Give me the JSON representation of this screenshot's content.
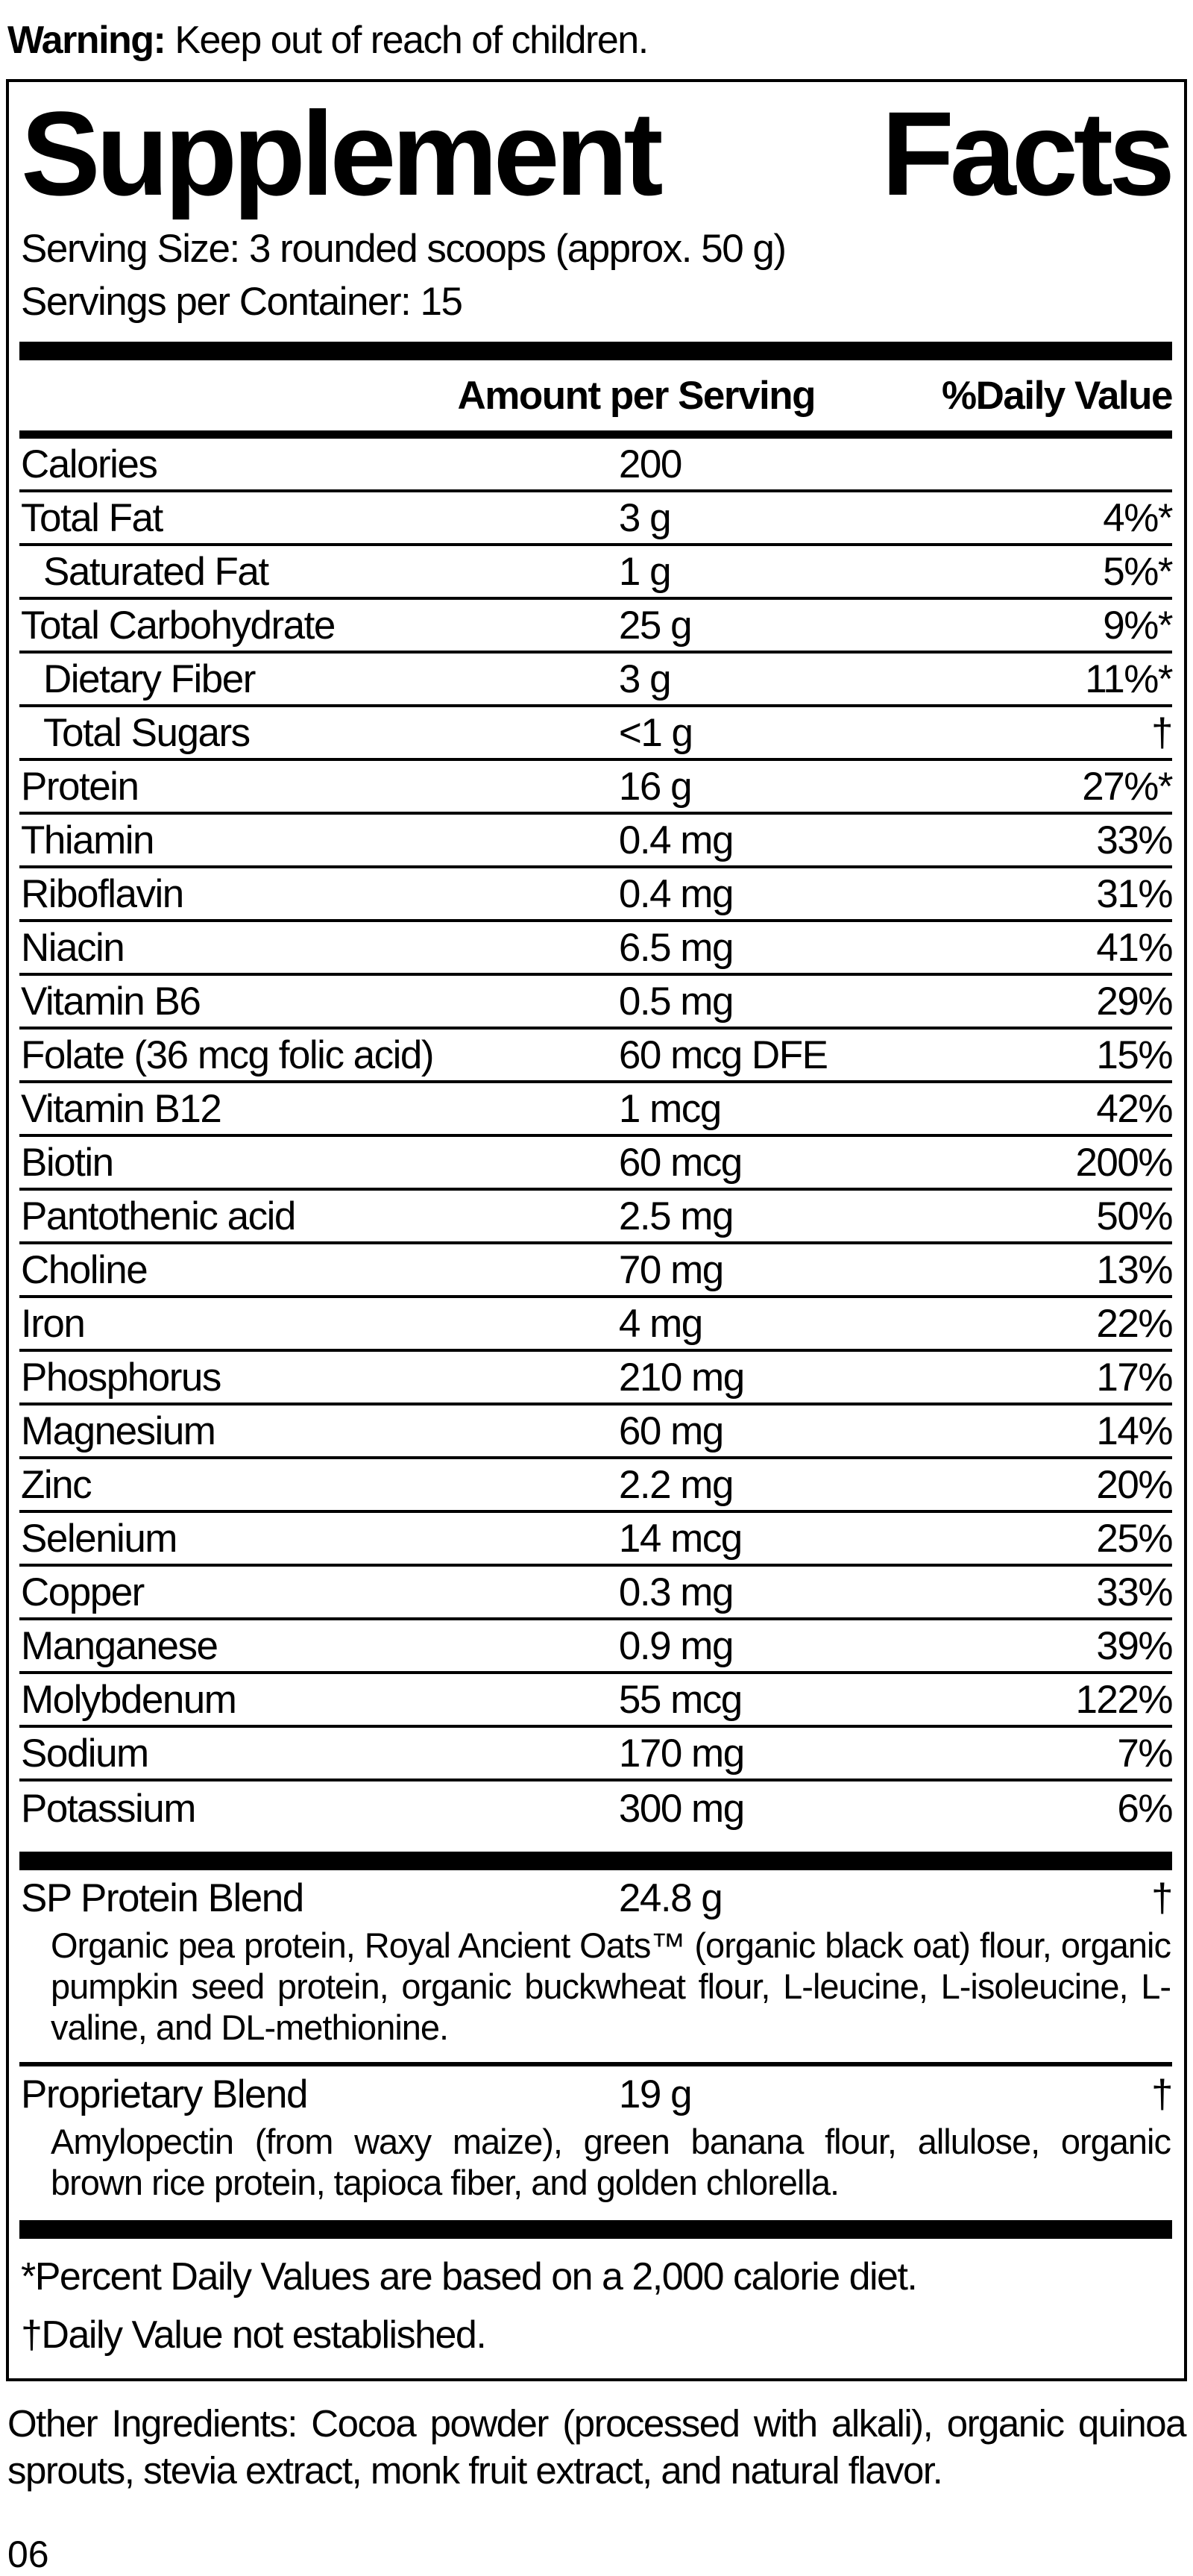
{
  "warning": {
    "label": "Warning:",
    "text": " Keep out of reach of children."
  },
  "panel": {
    "title_left": "Supplement",
    "title_right": "Facts",
    "serving_size": "Serving Size: 3 rounded scoops (approx. 50 g)",
    "servings_per_container": "Servings per Container: 15",
    "col_amount": "Amount per Serving",
    "col_dv": "%Daily Value",
    "rows": [
      {
        "name": "Calories",
        "amount": "200",
        "dv": ""
      },
      {
        "name": "Total Fat",
        "amount": "3 g",
        "dv": "4%*"
      },
      {
        "name": "Saturated Fat",
        "amount": "1 g",
        "dv": "5%*"
      },
      {
        "name": "Total Carbohydrate",
        "amount": "25 g",
        "dv": "9%*"
      },
      {
        "name": "Dietary Fiber",
        "amount": "3 g",
        "dv": "11%*"
      },
      {
        "name": "Total Sugars",
        "amount": "<1 g",
        "dv": "†"
      },
      {
        "name": "Protein",
        "amount": "16 g",
        "dv": "27%*"
      },
      {
        "name": "Thiamin",
        "amount": "0.4 mg",
        "dv": "33%"
      },
      {
        "name": "Riboflavin",
        "amount": "0.4 mg",
        "dv": "31%"
      },
      {
        "name": "Niacin",
        "amount": "6.5 mg",
        "dv": "41%"
      },
      {
        "name": "Vitamin B6",
        "amount": "0.5 mg",
        "dv": "29%"
      },
      {
        "name": "Folate (36 mcg folic acid)",
        "amount": "60 mcg DFE",
        "dv": "15%"
      },
      {
        "name": "Vitamin B12",
        "amount": "1 mcg",
        "dv": "42%"
      },
      {
        "name": "Biotin",
        "amount": "60 mcg",
        "dv": "200%"
      },
      {
        "name": "Pantothenic acid",
        "amount": "2.5 mg",
        "dv": "50%"
      },
      {
        "name": "Choline",
        "amount": "70 mg",
        "dv": "13%"
      },
      {
        "name": "Iron",
        "amount": "4 mg",
        "dv": "22%"
      },
      {
        "name": "Phosphorus",
        "amount": "210 mg",
        "dv": "17%"
      },
      {
        "name": "Magnesium",
        "amount": "60 mg",
        "dv": "14%"
      },
      {
        "name": "Zinc",
        "amount": "2.2 mg",
        "dv": "20%"
      },
      {
        "name": "Selenium",
        "amount": "14 mcg",
        "dv": "25%"
      },
      {
        "name": "Copper",
        "amount": "0.3 mg",
        "dv": "33%"
      },
      {
        "name": "Manganese",
        "amount": "0.9 mg",
        "dv": "39%"
      },
      {
        "name": "Molybdenum",
        "amount": "55 mcg",
        "dv": "122%"
      },
      {
        "name": "Sodium",
        "amount": "170 mg",
        "dv": "7%"
      },
      {
        "name": "Potassium",
        "amount": "300 mg",
        "dv": "6%"
      }
    ],
    "blends": [
      {
        "name": "SP Protein Blend",
        "amount": "24.8 g",
        "dv": "†",
        "desc": "Organic pea protein, Royal Ancient Oats™ (organic black oat) flour, organic pumpkin seed protein, organic buckwheat flour, L-leucine, L-isoleucine, L-valine, and DL-methionine."
      },
      {
        "name": "Proprietary Blend",
        "amount": "19 g",
        "dv": "†",
        "desc": "Amylopectin (from waxy maize), green banana flour, allulose, organic brown rice protein, tapioca fiber, and golden chlorella."
      }
    ],
    "footnotes": [
      "*Percent Daily Values are based on a 2,000 calorie diet.",
      "†Daily Value not established."
    ]
  },
  "other_ingredients": "Other Ingredients: Cocoa powder (processed with alkali), organic quinoa sprouts, stevia extract, monk fruit extract, and natural flavor.",
  "page_number": "06"
}
